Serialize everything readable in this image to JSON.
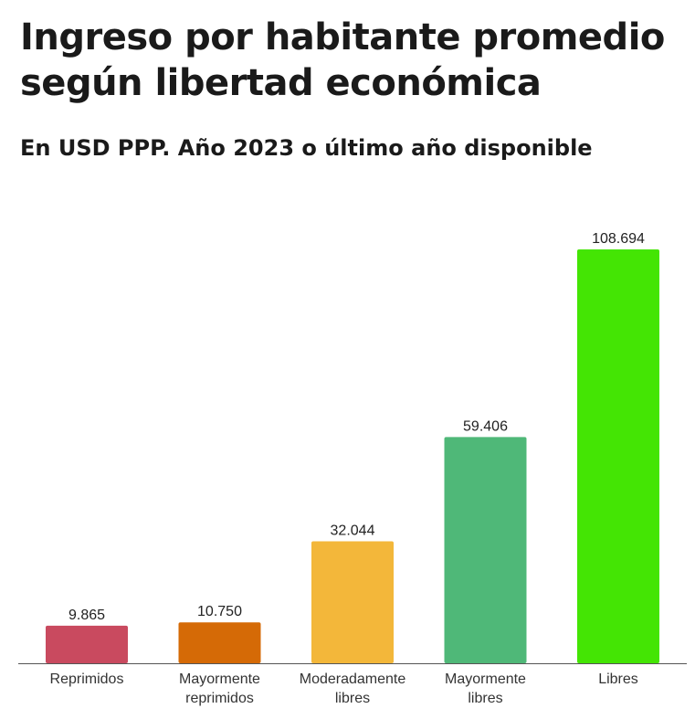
{
  "title": "Ingreso por habitante promedio según libertad económica",
  "subtitle": "En USD PPP. Año 2023 o último año disponible",
  "chart_data": {
    "type": "bar",
    "title": "Ingreso por habitante promedio según libertad económica",
    "subtitle": "En USD PPP. Año 2023 o último año disponible",
    "categories": [
      [
        "Reprimidos"
      ],
      [
        "Mayormente",
        "reprimidos"
      ],
      [
        "Moderadamente",
        "libres"
      ],
      [
        "Mayormente",
        "libres"
      ],
      [
        "Libres"
      ]
    ],
    "values": [
      9865,
      10750,
      32044,
      59406,
      108694
    ],
    "value_labels": [
      "9.865",
      "10.750",
      "32.044",
      "59.406",
      "108.694"
    ],
    "colors": [
      "#c94a5f",
      "#d56a06",
      "#f3b73a",
      "#4fb878",
      "#44e504"
    ],
    "xlabel": "",
    "ylabel": "",
    "ylim": [
      0,
      110000
    ],
    "grid": false,
    "legend": "none"
  }
}
